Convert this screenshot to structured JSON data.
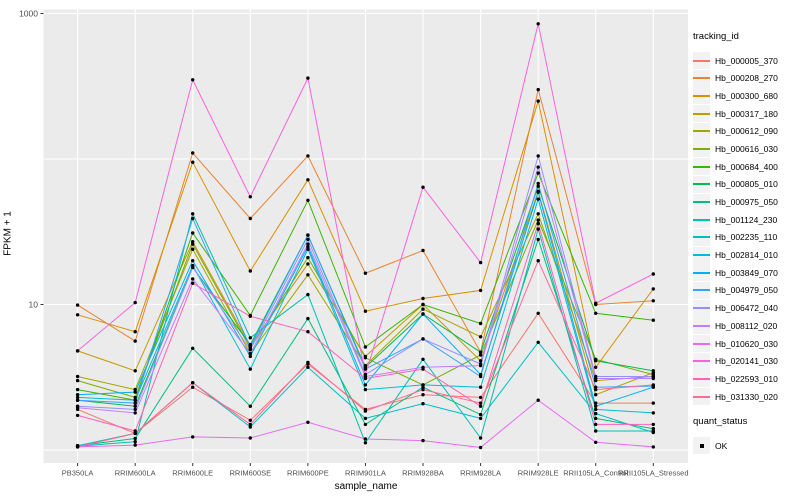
{
  "figure": {
    "panel_bg": "#EBEBEB",
    "grid_color": "#FFFFFF",
    "point_color": "#000000",
    "axis_text_color": "#4D4D4D",
    "tick_color": "#333333"
  },
  "axes": {
    "x_title": "sample_name",
    "y_title": "FPKM + 1",
    "y_tick_labels": [
      "1000",
      "10"
    ],
    "y_tick_values": [
      1000,
      10
    ],
    "grid_values": [
      1,
      10,
      100,
      1000
    ]
  },
  "legend": {
    "tracking_title": "tracking_id",
    "quant_title": "quant_status",
    "quant_items": [
      {
        "label": "OK",
        "marker": "black-square"
      }
    ]
  },
  "chart_data": {
    "type": "line",
    "title": "",
    "xlabel": "sample_name",
    "ylabel": "FPKM + 1",
    "y_scale": "log10",
    "ylim": [
      0.85,
      1050
    ],
    "grid": true,
    "legend_position": "right",
    "marker": "black point on every vertex (quant_status = OK)",
    "categories": [
      "PB350LA",
      "RRIM600LA",
      "RRIM600LE",
      "RRIM600SE",
      "RRIM600PE",
      "RRIM901LA",
      "RRIM928BA",
      "RRIM928LA",
      "RRIM928LE",
      "RRII105LA_Control",
      "RRII105LA_Stressed"
    ],
    "series": [
      {
        "name": "Hb_000005_370",
        "color": "#F8766D",
        "values": [
          1.9,
          1.3,
          2.7,
          1.6,
          3.9,
          1.9,
          2.4,
          2.3,
          8.7,
          2.1,
          2.1
        ]
      },
      {
        "name": "Hb_000208_270",
        "color": "#EA8331",
        "values": [
          9.9,
          5.6,
          110,
          39,
          105,
          16.4,
          23.5,
          4.7,
          300,
          10.0,
          10.6
        ]
      },
      {
        "name": "Hb_000300_680",
        "color": "#D89000",
        "values": [
          8.5,
          6.5,
          95,
          17,
          72,
          9.0,
          11.0,
          12.5,
          250,
          3.7,
          12.8
        ]
      },
      {
        "name": "Hb_000317_180",
        "color": "#C09B00",
        "values": [
          4.8,
          3.5,
          27,
          5.2,
          19,
          4.4,
          10.0,
          4.1,
          60,
          2.4,
          3.4
        ]
      },
      {
        "name": "Hb_000612_090",
        "color": "#A3A500",
        "values": [
          3.2,
          2.6,
          24,
          4.6,
          16,
          3.8,
          9.3,
          6.0,
          42,
          3.0,
          3.2
        ]
      },
      {
        "name": "Hb_000616_030",
        "color": "#7CAE00",
        "values": [
          3.0,
          2.3,
          26,
          5.0,
          21,
          4.3,
          2.8,
          4.5,
          38,
          4.2,
          3.3
        ]
      },
      {
        "name": "Hb_000684_400",
        "color": "#39B600",
        "values": [
          2.6,
          2.2,
          31,
          8.4,
          52,
          5.1,
          10.0,
          7.4,
          80,
          8.7,
          7.8
        ]
      },
      {
        "name": "Hb_000805_010",
        "color": "#00BB4E",
        "values": [
          2.2,
          2.0,
          18,
          5.3,
          30,
          3.7,
          8.6,
          4.7,
          65,
          4.1,
          3.5
        ]
      },
      {
        "name": "Hb_000975_050",
        "color": "#00BF7D",
        "values": [
          1.07,
          1.2,
          5.0,
          2.0,
          8.0,
          1.5,
          2.7,
          1.75,
          28,
          1.65,
          1.4
        ]
      },
      {
        "name": "Hb_001124_230",
        "color": "#00C0AF",
        "values": [
          1.06,
          1.14,
          42,
          5.9,
          11.7,
          1.12,
          4.2,
          1.21,
          33,
          1.35,
          1.35
        ]
      },
      {
        "name": "Hb_002235_110",
        "color": "#00BFC4",
        "values": [
          1.07,
          1.3,
          2.9,
          1.44,
          3.7,
          1.65,
          2.08,
          1.65,
          5.5,
          1.78,
          1.32
        ]
      },
      {
        "name": "Hb_002814_010",
        "color": "#00BCD8",
        "values": [
          2.3,
          2.2,
          18.5,
          3.6,
          24,
          2.6,
          2.8,
          2.7,
          53,
          1.9,
          1.8
        ]
      },
      {
        "name": "Hb_003849_070",
        "color": "#00B0F6",
        "values": [
          2.4,
          2.5,
          20,
          4.4,
          25,
          2.8,
          8.6,
          3.3,
          59,
          2.0,
          2.7
        ]
      },
      {
        "name": "Hb_004979_050",
        "color": "#35A2FF",
        "values": [
          2.2,
          2.1,
          39,
          5.1,
          30,
          3.6,
          5.8,
          3.2,
          68,
          2.7,
          2.75
        ]
      },
      {
        "name": "Hb_006472_040",
        "color": "#9590FF",
        "values": [
          2.0,
          1.9,
          18,
          4.9,
          28,
          3.3,
          5.8,
          3.9,
          105,
          3.2,
          3.2
        ]
      },
      {
        "name": "Hb_008112_020",
        "color": "#BF80FF",
        "values": [
          1.95,
          1.8,
          15,
          4.6,
          26,
          3.2,
          3.7,
          3.8,
          88,
          3.1,
          3.1
        ]
      },
      {
        "name": "Hb_010620_030",
        "color": "#E76BF3",
        "values": [
          1.05,
          1.08,
          1.23,
          1.21,
          1.55,
          1.19,
          1.16,
          1.04,
          2.2,
          1.13,
          1.05
        ]
      },
      {
        "name": "Hb_020141_030",
        "color": "#FA62DB",
        "values": [
          4.8,
          10.3,
          350,
          55,
          360,
          3.3,
          64,
          19.4,
          850,
          10.2,
          16.2
        ]
      },
      {
        "name": "Hb_022593_010",
        "color": "#FF62BC",
        "values": [
          1.73,
          1.35,
          14,
          8.3,
          6.5,
          3.1,
          3.6,
          2.0,
          36,
          1.5,
          1.5
        ]
      },
      {
        "name": "Hb_031330_020",
        "color": "#FF6A98",
        "values": [
          1.05,
          1.3,
          2.9,
          1.5,
          4.0,
          1.85,
          2.6,
          2.1,
          20,
          2.6,
          2.8
        ]
      }
    ]
  }
}
